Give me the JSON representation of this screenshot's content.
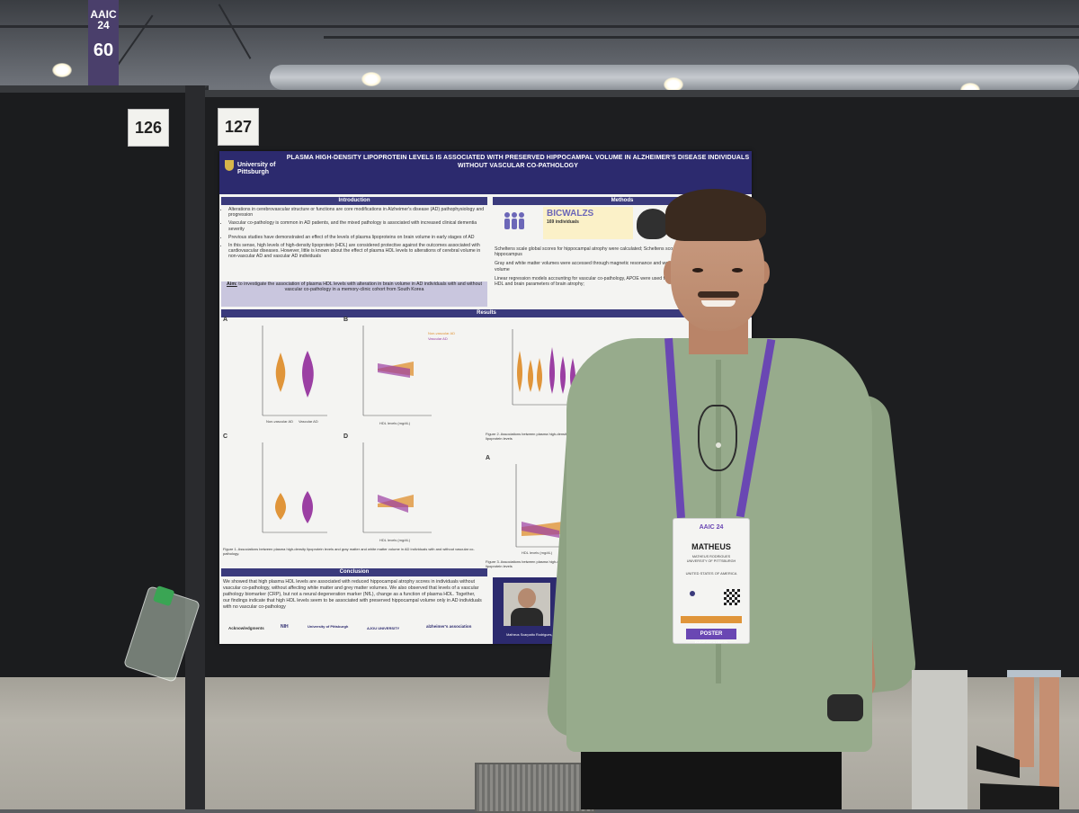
{
  "banner": {
    "line1": "AAIC 24",
    "line2": "60"
  },
  "boards": {
    "left_number": "126",
    "right_number": "127"
  },
  "poster": {
    "title": "PLASMA HIGH-DENSITY LIPOPROTEIN LEVELS IS ASSOCIATED WITH PRESERVED HIPPOCAMPAL VOLUME IN ALZHEIMER'S DISEASE INDIVIDUALS WITHOUT VASCULAR CO-PATHOLOGY",
    "university": "University of Pittsburgh",
    "sections": {
      "introduction": "Introduction",
      "methods": "Methods",
      "results": "Results",
      "conclusion": "Conclusion"
    },
    "intro_bullets": [
      "Alterations in cerebrovascular structure or functions are core modifications in Alzheimer's disease (AD) pathophysiology and progression",
      "Vascular co-pathology is common in AD patients, and the mixed pathology is associated with increased clinical dementia severity",
      "Previous studies have demonstrated an effect of the levels of plasma lipoproteins on brain volume in early stages of AD",
      "In this sense, high levels of high-density lipoprotein (HDL) are considered protective against the outcomes associated with cardiovascular diseases. However, little is known about the effect of plasma HDL levels to alterations of cerebral volume in non-vascular AD and vascular AD individuals"
    ],
    "aim_label": "Aim:",
    "aim_text": "to investigate the association of plasma HDL levels with alteration in brain volume in AD individuals with and without vascular co-pathology in a memory-clinic cohort from South Korea",
    "methods": {
      "cohort_name": "BICWALZS",
      "cohort_count": "169 individuals",
      "methods_bullets": [
        "Scheltens scale global scores for hippocampal atrophy were calculated; Scheltens scores from the left and right hippocampus",
        "Gray and white matter volumes were accessed through magnetic resonance and were corrected by total intracranial volume",
        "Linear regression models accounting for vascular co-pathology, APOE were used to test the association between plasma HDL and brain parameters of brain atrophy;"
      ]
    },
    "results": {
      "panel_letters": [
        "A",
        "B",
        "C",
        "D",
        "A"
      ],
      "x_axis_label": "HDL levels (mg/dL)",
      "legend": [
        "Non-vascular AD",
        "Vascular AD"
      ],
      "groups": [
        "Non-vascular AD",
        "Vascular AD"
      ],
      "figure1_caption": "Figure 1. Associations between plasma high-density lipoprotein levels and gray matter and white matter volume in AD individuals with and without vascular co-pathology.",
      "figure2_caption": "Figure 2. Associations between plasma high-density lipoprotein levels",
      "figure3_caption": "Figure 3. Associations between plasma high-density lipoprotein levels"
    },
    "conclusion_text": "We showed that high plasma HDL levels are associated with reduced hippocampal atrophy scores in individuals without vascular co-pathology, without affecting white matter and grey matter volumes. We also observed that levels of a vascular pathology biomarker (CRP), but not a neural degeneration marker (NfL), change as a function of plasma HDL. Together, our findings indicate that high HDL levels seem to be associated with preserved hippocampal volume only in AD individuals with no vascular co-pathology",
    "acknowledgments": "Acknowledgments",
    "logos": [
      "NIH",
      "University of Pittsburgh",
      "AJOU UNIVERSITY",
      "alzheimer's association"
    ],
    "presenter": "Matheus Scarpatto Rodrigues, PhD"
  },
  "badge": {
    "event": "AAIC 24",
    "name": "MATHEUS",
    "surname_line": "MATHEUS RODRIGUES",
    "org": "UNIVERSITY OF PITTSBURGH",
    "country": "UNITED STATES OF AMERICA",
    "role": "POSTER PRESENTER"
  },
  "colors": {
    "poster_header": "#2c2a6e",
    "lanyard": "#6a47b3",
    "shirt": "#97ab8c",
    "violin_orange": "#e0953a",
    "violin_purple": "#9b3fa3"
  }
}
